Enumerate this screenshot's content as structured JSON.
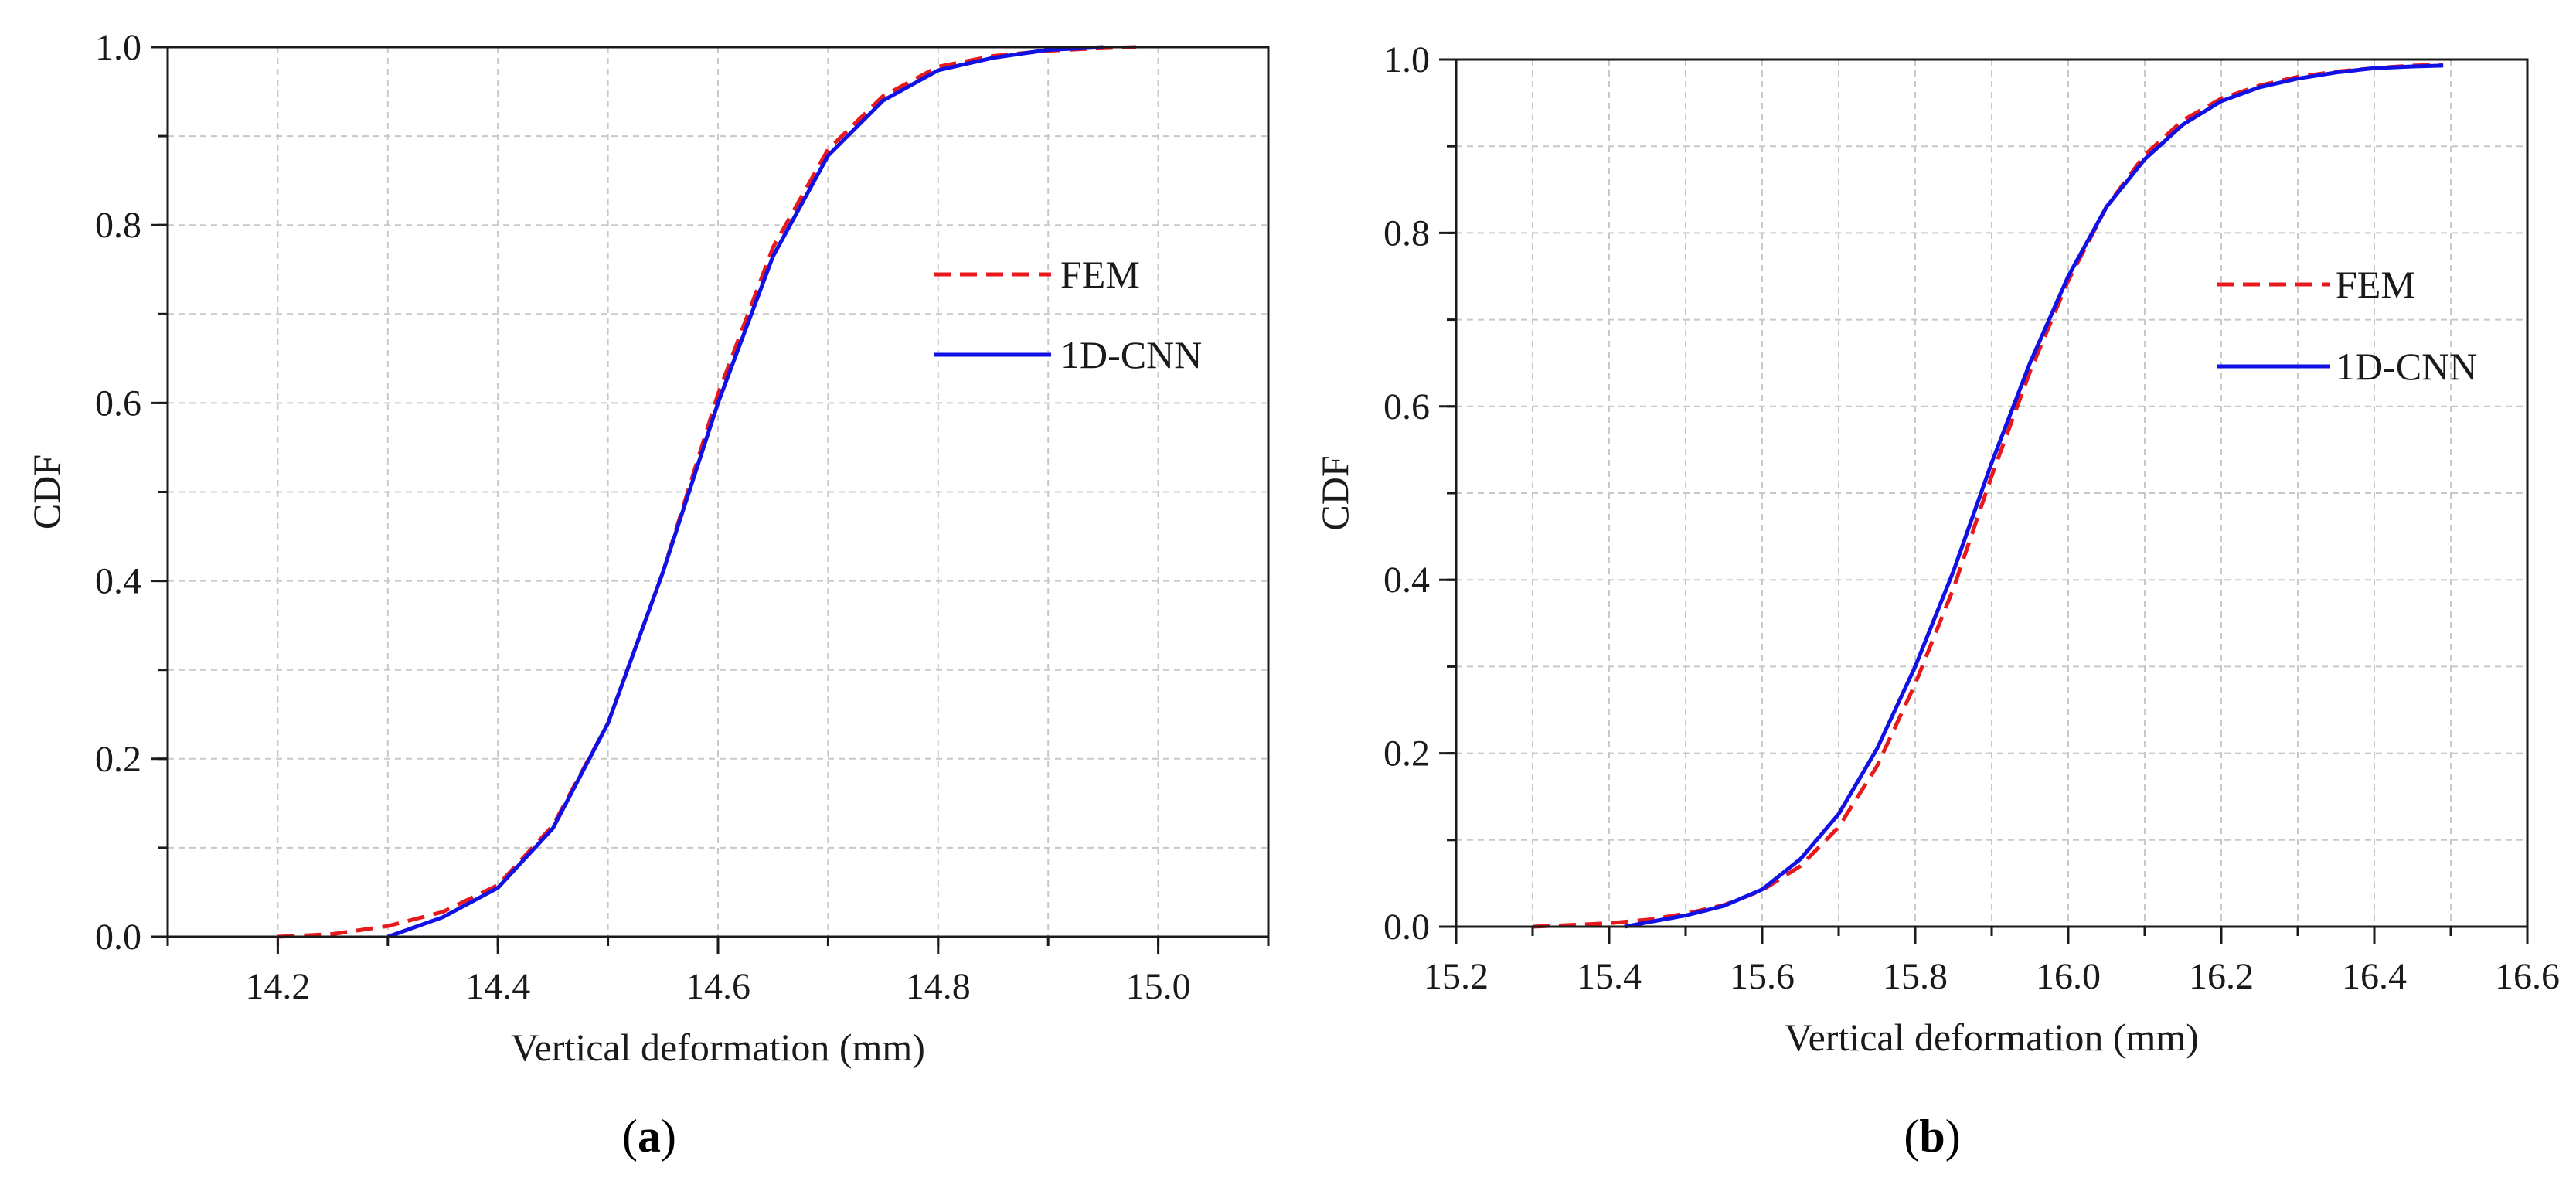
{
  "colors": {
    "fem": "#e8191d",
    "cnn": "#1111e6",
    "grid": "#c8c8c8",
    "axis": "#1a1a1a"
  },
  "chart_data": [
    {
      "id": "a",
      "type": "line",
      "caption_letter": "a",
      "title": "",
      "xlabel": "Vertical deformation (mm)",
      "ylabel": "CDF",
      "xlim": [
        14.1,
        15.1
      ],
      "ylim": [
        0.0,
        1.0
      ],
      "x_ticks": [
        14.2,
        14.4,
        14.6,
        14.8,
        15.0
      ],
      "x_tick_labels": [
        "14.2",
        "14.4",
        "14.6",
        "14.8",
        "15.0"
      ],
      "y_ticks": [
        0.0,
        0.2,
        0.4,
        0.6,
        0.8,
        1.0
      ],
      "y_tick_labels": [
        "0.0",
        "0.2",
        "0.4",
        "0.6",
        "0.8",
        "1.0"
      ],
      "grid": true,
      "legend_position": "right-middle",
      "series": [
        {
          "name": "FEM",
          "style": "dashed",
          "color_key": "fem",
          "x": [
            14.2,
            14.25,
            14.3,
            14.35,
            14.4,
            14.45,
            14.5,
            14.55,
            14.6,
            14.65,
            14.7,
            14.75,
            14.8,
            14.85,
            14.9,
            14.95,
            14.98
          ],
          "y": [
            0.0,
            0.003,
            0.012,
            0.028,
            0.058,
            0.125,
            0.24,
            0.41,
            0.61,
            0.775,
            0.885,
            0.945,
            0.978,
            0.99,
            0.996,
            0.999,
            1.0
          ]
        },
        {
          "name": "1D-CNN",
          "style": "solid",
          "color_key": "cnn",
          "x": [
            14.3,
            14.35,
            14.4,
            14.45,
            14.5,
            14.55,
            14.6,
            14.65,
            14.7,
            14.75,
            14.8,
            14.85,
            14.9,
            14.95
          ],
          "y": [
            0.0,
            0.022,
            0.055,
            0.122,
            0.24,
            0.41,
            0.6,
            0.765,
            0.878,
            0.94,
            0.974,
            0.988,
            0.997,
            1.0
          ]
        }
      ]
    },
    {
      "id": "b",
      "type": "line",
      "caption_letter": "b",
      "title": "",
      "xlabel": "Vertical deformation (mm)",
      "ylabel": "CDF",
      "xlim": [
        15.2,
        16.6
      ],
      "ylim": [
        0.0,
        1.0
      ],
      "x_ticks": [
        15.2,
        15.4,
        15.6,
        15.8,
        16.0,
        16.2,
        16.4,
        16.6
      ],
      "x_tick_labels": [
        "15.2",
        "15.4",
        "15.6",
        "15.8",
        "16.0",
        "16.2",
        "16.4",
        "16.6"
      ],
      "y_ticks": [
        0.0,
        0.2,
        0.4,
        0.6,
        0.8,
        1.0
      ],
      "y_tick_labels": [
        "0.0",
        "0.2",
        "0.4",
        "0.6",
        "0.8",
        "1.0"
      ],
      "grid": true,
      "legend_position": "right-middle",
      "series": [
        {
          "name": "FEM",
          "style": "dashed",
          "color_key": "fem",
          "x": [
            15.3,
            15.35,
            15.4,
            15.45,
            15.5,
            15.55,
            15.6,
            15.65,
            15.7,
            15.75,
            15.8,
            15.85,
            15.9,
            15.95,
            16.0,
            16.05,
            16.1,
            16.15,
            16.2,
            16.25,
            16.3,
            16.35,
            16.4,
            16.45,
            16.49
          ],
          "y": [
            0.0,
            0.002,
            0.004,
            0.008,
            0.015,
            0.025,
            0.042,
            0.07,
            0.115,
            0.185,
            0.28,
            0.39,
            0.52,
            0.64,
            0.745,
            0.83,
            0.89,
            0.93,
            0.955,
            0.97,
            0.98,
            0.986,
            0.99,
            0.993,
            0.994
          ]
        },
        {
          "name": "1D-CNN",
          "style": "solid",
          "color_key": "cnn",
          "x": [
            15.42,
            15.45,
            15.5,
            15.55,
            15.6,
            15.65,
            15.7,
            15.75,
            15.8,
            15.85,
            15.9,
            15.95,
            16.0,
            16.05,
            16.1,
            16.15,
            16.2,
            16.25,
            16.3,
            16.35,
            16.4,
            16.45,
            16.49
          ],
          "y": [
            0.0,
            0.005,
            0.013,
            0.024,
            0.043,
            0.078,
            0.13,
            0.205,
            0.3,
            0.41,
            0.535,
            0.65,
            0.75,
            0.83,
            0.885,
            0.925,
            0.952,
            0.968,
            0.978,
            0.985,
            0.99,
            0.992,
            0.993
          ]
        }
      ]
    }
  ]
}
